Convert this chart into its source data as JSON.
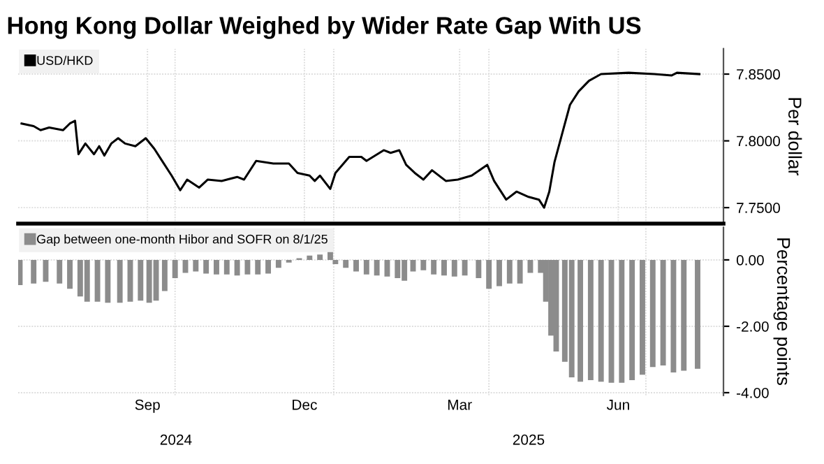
{
  "chart_data": [
    {
      "type": "line",
      "title": "Hong Kong Dollar Weighed by Wider Rate Gap With US",
      "ylabel": "Per dollar",
      "xlim": [
        "2024-07-02",
        "2025-08-15"
      ],
      "ylim": [
        7.738,
        7.869
      ],
      "yticks": [
        {
          "value": 7.75,
          "label": "7.7500"
        },
        {
          "value": 7.8,
          "label": "7.8000"
        },
        {
          "value": 7.85,
          "label": "7.8500"
        }
      ],
      "xticks": [
        {
          "value": "2024-09-15",
          "label": null
        },
        {
          "value": "2024-12-15",
          "label": null
        },
        {
          "value": "2025-03-15",
          "label": null
        },
        {
          "value": "2025-06-15",
          "label": null
        },
        {
          "value": "2024-10-01",
          "label": null
        },
        {
          "value": "2025-01-01",
          "label": null
        },
        {
          "value": "2025-04-01",
          "label": null
        },
        {
          "value": "2025-07-01",
          "label": null
        }
      ],
      "tick_labels": "y",
      "grid": true,
      "legend": "top left",
      "x": [
        "2024-07-04",
        "2024-07-11",
        "2024-07-15",
        "2024-07-20",
        "2024-07-28",
        "2024-08-01",
        "2024-08-04",
        "2024-08-06",
        "2024-08-10",
        "2024-08-15",
        "2024-08-18",
        "2024-08-21",
        "2024-08-25",
        "2024-08-29",
        "2024-09-02",
        "2024-09-08",
        "2024-09-14",
        "2024-09-19",
        "2024-09-23",
        "2024-09-29",
        "2024-10-04",
        "2024-10-08",
        "2024-10-15",
        "2024-10-20",
        "2024-10-28",
        "2024-11-06",
        "2024-11-10",
        "2024-11-17",
        "2024-11-27",
        "2024-12-06",
        "2024-12-11",
        "2024-12-18",
        "2024-12-21",
        "2024-12-24",
        "2024-12-30",
        "2025-01-02",
        "2025-01-10",
        "2025-01-17",
        "2025-01-20",
        "2025-01-30",
        "2025-02-03",
        "2025-02-08",
        "2025-02-12",
        "2025-02-17",
        "2025-02-22",
        "2025-02-27",
        "2025-03-07",
        "2025-03-14",
        "2025-03-22",
        "2025-03-31",
        "2025-04-04",
        "2025-04-11",
        "2025-04-17",
        "2025-04-24",
        "2025-04-30",
        "2025-05-03",
        "2025-05-06",
        "2025-05-09",
        "2025-05-14",
        "2025-05-18",
        "2025-05-23",
        "2025-05-29",
        "2025-06-05",
        "2025-06-21",
        "2025-07-06",
        "2025-07-16",
        "2025-07-19",
        "2025-08-01"
      ],
      "series": [
        {
          "name": "USD/HKD",
          "color": "#000000",
          "values": [
            7.813,
            7.811,
            7.808,
            7.81,
            7.808,
            7.813,
            7.815,
            7.79,
            7.798,
            7.79,
            7.796,
            7.789,
            7.798,
            7.802,
            7.798,
            7.796,
            7.802,
            7.794,
            7.786,
            7.774,
            7.763,
            7.771,
            7.765,
            7.771,
            7.77,
            7.773,
            7.771,
            7.785,
            7.783,
            7.783,
            7.776,
            7.774,
            7.77,
            7.774,
            7.764,
            7.776,
            7.788,
            7.788,
            7.785,
            7.793,
            7.791,
            7.793,
            7.782,
            7.776,
            7.771,
            7.778,
            7.77,
            7.771,
            7.774,
            7.782,
            7.77,
            7.756,
            7.762,
            7.758,
            7.756,
            7.75,
            7.762,
            7.784,
            7.808,
            7.827,
            7.837,
            7.845,
            7.85,
            7.851,
            7.85,
            7.849,
            7.851,
            7.85
          ]
        }
      ]
    },
    {
      "type": "bar",
      "ylabel": "Percentage points",
      "xlim": [
        "2024-07-02",
        "2025-08-15"
      ],
      "ylim": [
        -4.08,
        0.98
      ],
      "yticks": [
        {
          "value": -4,
          "label": "-4.00"
        },
        {
          "value": -2,
          "label": "-2.00"
        },
        {
          "value": 0,
          "label": "0.00"
        }
      ],
      "xticks": [
        {
          "value": "2024-09-15",
          "label": "Sep"
        },
        {
          "value": "2024-12-15",
          "label": "Dec"
        },
        {
          "value": "2025-03-15",
          "label": "Mar"
        },
        {
          "value": "2025-06-15",
          "label": "Jun"
        },
        {
          "value": "2024-10-01",
          "label": null
        },
        {
          "value": "2025-01-01",
          "label": null
        },
        {
          "value": "2025-04-01",
          "label": null
        },
        {
          "value": "2025-07-01",
          "label": null
        }
      ],
      "grid": true,
      "legend": "top left",
      "annotations": [
        "2024",
        "2025"
      ],
      "x": [
        "2024-07-03",
        "2024-07-11",
        "2024-07-18",
        "2024-07-26",
        "2024-08-01",
        "2024-08-07",
        "2024-08-11",
        "2024-08-17",
        "2024-08-23",
        "2024-08-30",
        "2024-09-05",
        "2024-09-11",
        "2024-09-16",
        "2024-09-20",
        "2024-09-25",
        "2024-10-01",
        "2024-10-07",
        "2024-10-13",
        "2024-10-19",
        "2024-10-25",
        "2024-10-31",
        "2024-11-06",
        "2024-11-12",
        "2024-11-18",
        "2024-11-24",
        "2024-11-30",
        "2024-12-06",
        "2024-12-12",
        "2024-12-18",
        "2024-12-24",
        "2024-12-30",
        "2025-01-02",
        "2025-01-08",
        "2025-01-14",
        "2025-01-20",
        "2025-01-26",
        "2025-02-01",
        "2025-02-07",
        "2025-02-11",
        "2025-02-16",
        "2025-02-22",
        "2025-02-28",
        "2025-03-06",
        "2025-03-12",
        "2025-03-18",
        "2025-03-26",
        "2025-04-01",
        "2025-04-07",
        "2025-04-13",
        "2025-04-19",
        "2025-04-25",
        "2025-05-01",
        "2025-05-04",
        "2025-05-07",
        "2025-05-10",
        "2025-05-15",
        "2025-05-19",
        "2025-05-24",
        "2025-05-30",
        "2025-06-05",
        "2025-06-11",
        "2025-06-17",
        "2025-06-23",
        "2025-06-29",
        "2025-07-05",
        "2025-07-11",
        "2025-07-17",
        "2025-07-23",
        "2025-07-31"
      ],
      "series": [
        {
          "name": "Gap between one-month Hibor and SOFR on 8/1/25",
          "color": "#8c8c8c",
          "values": [
            -0.76,
            -0.71,
            -0.66,
            -0.71,
            -0.87,
            -1.1,
            -1.26,
            -1.26,
            -1.29,
            -1.29,
            -1.26,
            -1.23,
            -1.29,
            -1.23,
            -0.94,
            -0.55,
            -0.39,
            -0.35,
            -0.41,
            -0.44,
            -0.44,
            -0.47,
            -0.44,
            -0.44,
            -0.41,
            -0.24,
            -0.08,
            0.05,
            0.13,
            0.16,
            0.24,
            -0.13,
            -0.24,
            -0.35,
            -0.44,
            -0.47,
            -0.5,
            -0.55,
            -0.63,
            -0.35,
            -0.31,
            -0.44,
            -0.47,
            -0.5,
            -0.47,
            -0.55,
            -0.87,
            -0.79,
            -0.71,
            -0.71,
            -0.39,
            -0.39,
            -1.26,
            -2.28,
            -2.76,
            -3.07,
            -3.54,
            -3.67,
            -3.62,
            -3.67,
            -3.7,
            -3.7,
            -3.62,
            -3.46,
            -3.23,
            -3.18,
            -3.39,
            -3.34,
            -3.28
          ]
        }
      ]
    }
  ]
}
